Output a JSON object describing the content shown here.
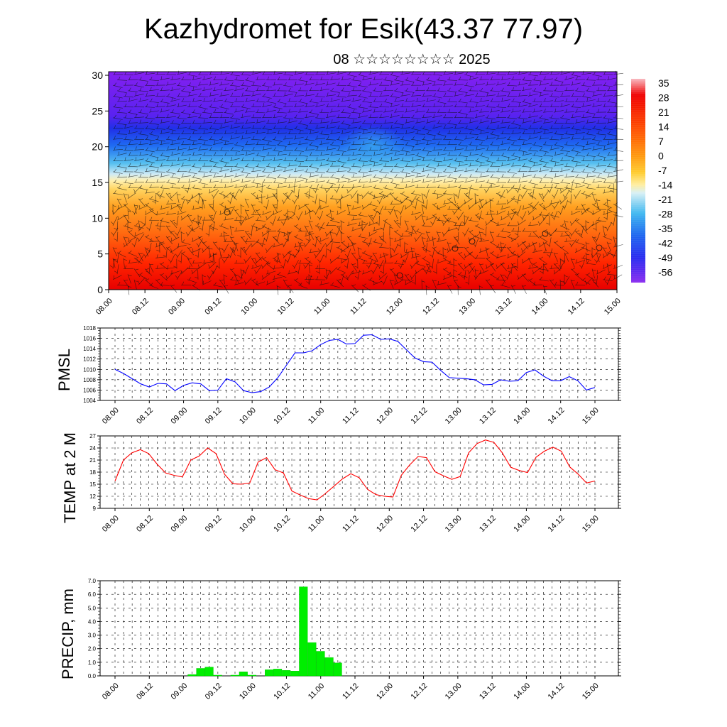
{
  "header": {
    "title": "Kazhydromet for Esik(43.37 77.97)",
    "subtitle": "08 ☆☆☆☆☆☆☆☆ 2025"
  },
  "colors": {
    "pmsl_line": "#0000ff",
    "temp_line": "#ff0000",
    "precip_bar": "#00ee00",
    "colormap": [
      "#7b1ff0",
      "#3b20f0",
      "#1a5cf5",
      "#3cb8f0",
      "#dff2f5",
      "#ffe878",
      "#ffc020",
      "#ff7a10",
      "#ff2a00",
      "#f00000",
      "#f8b0b8"
    ]
  },
  "chart_data": [
    {
      "type": "heatmap",
      "name": "vertical-section",
      "x_tick_labels": [
        "08.00",
        "08.12",
        "09.00",
        "09.12",
        "10.00",
        "10.12",
        "11.00",
        "11.12",
        "12.00",
        "12.12",
        "13.00",
        "13.12",
        "14.00",
        "14.12",
        "15.00"
      ],
      "y_ticks": [
        0,
        5,
        10,
        15,
        20,
        25,
        30
      ],
      "ylim": [
        0,
        30.5
      ],
      "colorbar_labels": [
        "35",
        "28",
        "21",
        "14",
        "7",
        "0",
        "-7",
        "-14",
        "-21",
        "-28",
        "-35",
        "-42",
        "-49",
        "-56"
      ],
      "wind_barbs": true
    },
    {
      "type": "line",
      "ylabel": "PMSL",
      "ylim": [
        1004,
        1018
      ],
      "y_ticks": [
        1004,
        1006,
        1008,
        1010,
        1012,
        1014,
        1016,
        1018
      ],
      "x_tick_labels": [
        "08.00",
        "08.12",
        "09.00",
        "09.12",
        "10.00",
        "10.12",
        "11.00",
        "11.12",
        "12.00",
        "12.12",
        "13.00",
        "13.12",
        "14.00",
        "14.12",
        "15.00"
      ],
      "grid": true,
      "values": [
        1010.0,
        1009.2,
        1008.2,
        1007.2,
        1006.6,
        1007.3,
        1007.2,
        1005.9,
        1006.9,
        1007.4,
        1007.2,
        1005.9,
        1006.0,
        1008.2,
        1007.6,
        1005.9,
        1005.5,
        1005.7,
        1006.6,
        1008.4,
        1010.8,
        1013.2,
        1013.2,
        1013.6,
        1014.8,
        1015.6,
        1015.8,
        1014.9,
        1015.0,
        1016.6,
        1016.7,
        1015.8,
        1015.9,
        1015.4,
        1013.8,
        1012.2,
        1011.5,
        1011.4,
        1009.8,
        1008.4,
        1008.3,
        1008.2,
        1008.0,
        1007.0,
        1007.1,
        1008.0,
        1007.7,
        1007.8,
        1009.4,
        1009.9,
        1008.7,
        1007.8,
        1007.8,
        1008.6,
        1007.8,
        1006.0,
        1006.5
      ]
    },
    {
      "type": "line",
      "ylabel": "TEMP at 2 M",
      "ylim": [
        9,
        27
      ],
      "y_ticks": [
        9,
        12,
        15,
        18,
        21,
        24,
        27
      ],
      "x_tick_labels": [
        "08.00",
        "08.12",
        "09.00",
        "09.12",
        "10.00",
        "10.12",
        "11.00",
        "11.12",
        "12.00",
        "12.12",
        "13.00",
        "13.12",
        "14.00",
        "14.12",
        "15.00"
      ],
      "grid": true,
      "values": [
        15.8,
        21.0,
        22.8,
        23.6,
        22.6,
        20.0,
        17.8,
        17.2,
        16.8,
        21.0,
        22.0,
        24.0,
        22.6,
        17.5,
        15.1,
        15.0,
        15.3,
        20.5,
        21.6,
        18.6,
        17.8,
        13.3,
        12.3,
        11.4,
        11.1,
        12.7,
        14.5,
        16.3,
        17.6,
        16.6,
        13.7,
        12.4,
        12.0,
        11.8,
        17.2,
        19.8,
        21.9,
        21.6,
        18.1,
        17.1,
        16.2,
        16.9,
        22.8,
        25.1,
        26.0,
        25.4,
        22.8,
        19.2,
        18.4,
        17.9,
        21.7,
        23.2,
        24.2,
        23.2,
        19.3,
        17.5,
        15.3,
        15.8
      ]
    },
    {
      "type": "bar",
      "ylabel": "PRECIP, mm",
      "ylim": [
        0,
        7
      ],
      "y_tick_labels": [
        "0.0",
        "1.0",
        "2.0",
        "3.0",
        "4.0",
        "5.0",
        "6.0",
        "7.0"
      ],
      "x_tick_labels": [
        "08.00",
        "08.12",
        "09.00",
        "09.12",
        "10.00",
        "10.12",
        "11.00",
        "11.12",
        "12.00",
        "12.12",
        "13.00",
        "13.12",
        "14.00",
        "14.12",
        "15.00"
      ],
      "grid": true,
      "values": [
        0,
        0,
        0,
        0,
        0,
        0,
        0,
        0,
        0,
        0.1,
        0.55,
        0.65,
        0.05,
        0,
        0.05,
        0.3,
        0.05,
        0,
        0.45,
        0.5,
        0.4,
        0.35,
        6.55,
        2.45,
        1.8,
        1.35,
        0.95,
        0,
        0,
        0,
        0,
        0,
        0,
        0,
        0,
        0,
        0,
        0,
        0,
        0,
        0,
        0,
        0,
        0,
        0,
        0,
        0,
        0,
        0,
        0,
        0,
        0,
        0,
        0,
        0,
        0,
        0
      ]
    }
  ]
}
